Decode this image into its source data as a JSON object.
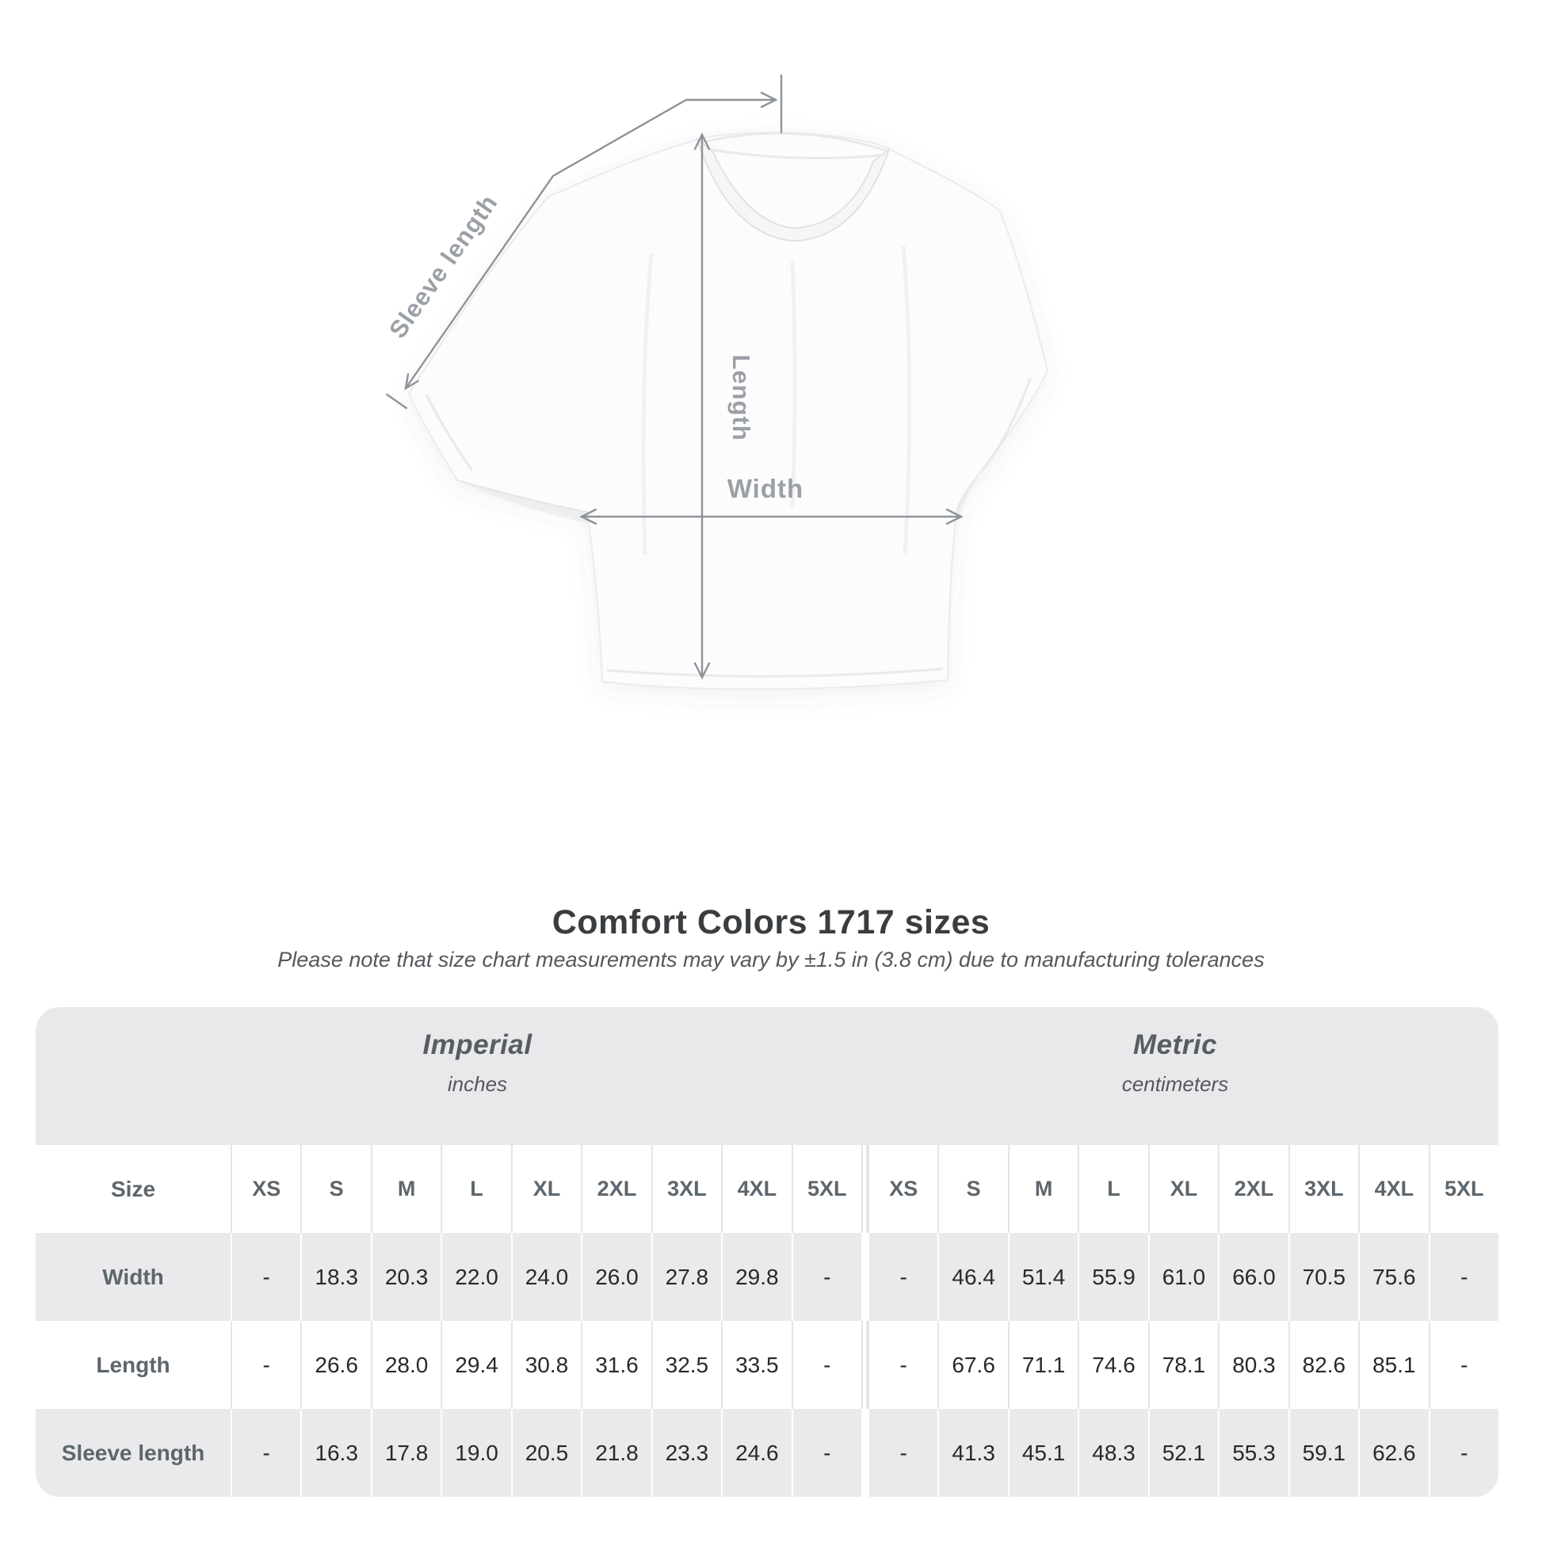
{
  "diagram": {
    "labels": {
      "sleeve_length": "Sleeve length",
      "length": "Length",
      "width": "Width"
    }
  },
  "title": "Comfort Colors 1717 sizes",
  "subtitle": "Please note that size chart measurements may vary by ±1.5 in (3.8 cm) due to manufacturing tolerances",
  "table": {
    "size_label": "Size",
    "groups": [
      {
        "title": "Imperial",
        "unit": "inches"
      },
      {
        "title": "Metric",
        "unit": "centimeters"
      }
    ],
    "sizes": [
      "XS",
      "S",
      "M",
      "L",
      "XL",
      "2XL",
      "3XL",
      "4XL",
      "5XL"
    ],
    "rows": [
      {
        "label": "Width",
        "imperial": [
          "-",
          "18.3",
          "20.3",
          "22.0",
          "24.0",
          "26.0",
          "27.8",
          "29.8",
          "-"
        ],
        "metric": [
          "-",
          "46.4",
          "51.4",
          "55.9",
          "61.0",
          "66.0",
          "70.5",
          "75.6",
          "-"
        ]
      },
      {
        "label": "Length",
        "imperial": [
          "-",
          "26.6",
          "28.0",
          "29.4",
          "30.8",
          "31.6",
          "32.5",
          "33.5",
          "-"
        ],
        "metric": [
          "-",
          "67.6",
          "71.1",
          "74.6",
          "78.1",
          "80.3",
          "82.6",
          "85.1",
          "-"
        ]
      },
      {
        "label": "Sleeve length",
        "imperial": [
          "-",
          "16.3",
          "17.8",
          "19.0",
          "20.5",
          "21.8",
          "23.3",
          "24.6",
          "-"
        ],
        "metric": [
          "-",
          "41.3",
          "45.1",
          "48.3",
          "52.1",
          "55.3",
          "59.1",
          "62.6",
          "-"
        ]
      }
    ]
  }
}
